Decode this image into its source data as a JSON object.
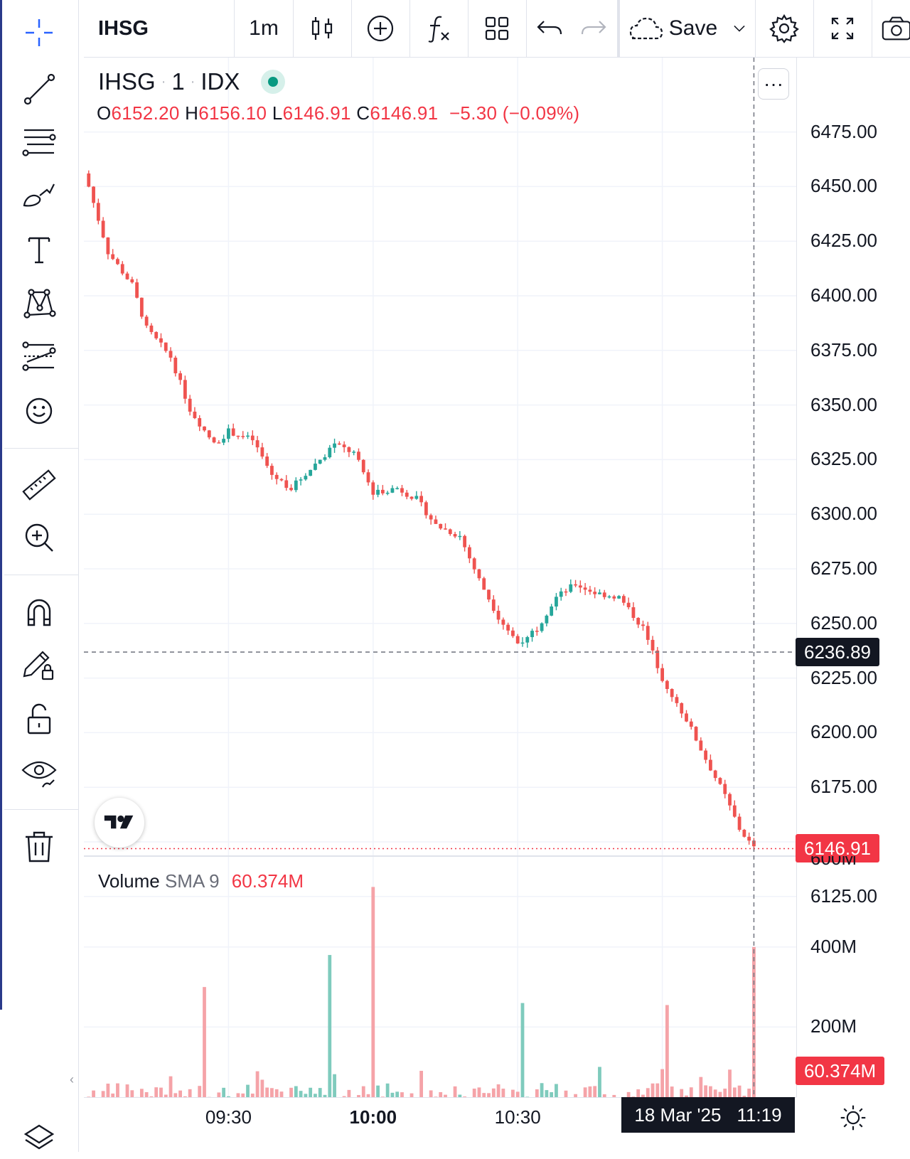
{
  "toolbar": {
    "symbol": "IHSG",
    "interval": "1m",
    "save_label": "Save"
  },
  "legend": {
    "symbol": "IHSG",
    "interval": "1",
    "exchange": "IDX",
    "open_key": "O",
    "open": "6152.20",
    "high_key": "H",
    "high": "6156.10",
    "low_key": "L",
    "low": "6146.91",
    "close_key": "C",
    "close": "6146.91",
    "change": "−5.30 (−0.09%)"
  },
  "volume_legend": {
    "name": "Volume",
    "indicator": "SMA 9",
    "value": "60.374M"
  },
  "price_axis": {
    "labels": [
      "6475.00",
      "6450.00",
      "6425.00",
      "6400.00",
      "6375.00",
      "6350.00",
      "6325.00",
      "6300.00",
      "6275.00",
      "6250.00",
      "6225.00",
      "6200.00",
      "6175.00",
      "6125.00"
    ],
    "crosshair_value": "6236.89",
    "last_price": "6146.91"
  },
  "volume_axis": {
    "labels": [
      "600M",
      "400M",
      "200M"
    ],
    "sma_value": "60.374M"
  },
  "time_axis": {
    "labels": [
      "09:30",
      "10:00",
      "10:30"
    ],
    "crosshair_date": "18 Mar '25",
    "crosshair_time": "11:19"
  },
  "colors": {
    "up": "#26a69a",
    "down": "#ef5350",
    "volume_up": "#7fcbbd",
    "volume_down": "#f5a3a8",
    "crosshair_badge": "#131722",
    "last_price_badge": "#f23645",
    "live_dot": "#089981"
  },
  "chart_data": {
    "type": "candlestick",
    "interval": "1m",
    "ylim": [
      6115,
      6480
    ],
    "x_ticks": [
      "09:30",
      "10:00",
      "10:30"
    ],
    "close_path": [
      {
        "t": "09:01",
        "close": 6450
      },
      {
        "t": "09:05",
        "close": 6420
      },
      {
        "t": "09:10",
        "close": 6405
      },
      {
        "t": "09:13",
        "close": 6385
      },
      {
        "t": "09:18",
        "close": 6372
      },
      {
        "t": "09:22",
        "close": 6348
      },
      {
        "t": "09:27",
        "close": 6332
      },
      {
        "t": "09:30",
        "close": 6338
      },
      {
        "t": "09:35",
        "close": 6334
      },
      {
        "t": "09:39",
        "close": 6318
      },
      {
        "t": "09:43",
        "close": 6312
      },
      {
        "t": "09:48",
        "close": 6323
      },
      {
        "t": "09:52",
        "close": 6332
      },
      {
        "t": "09:56",
        "close": 6328
      },
      {
        "t": "10:00",
        "close": 6310
      },
      {
        "t": "10:05",
        "close": 6312
      },
      {
        "t": "10:09",
        "close": 6307
      },
      {
        "t": "10:13",
        "close": 6295
      },
      {
        "t": "10:18",
        "close": 6290
      },
      {
        "t": "10:22",
        "close": 6270
      },
      {
        "t": "10:26",
        "close": 6253
      },
      {
        "t": "10:30",
        "close": 6241
      },
      {
        "t": "10:34",
        "close": 6248
      },
      {
        "t": "10:38",
        "close": 6262
      },
      {
        "t": "10:42",
        "close": 6268
      },
      {
        "t": "10:46",
        "close": 6264
      },
      {
        "t": "10:51",
        "close": 6262
      },
      {
        "t": "10:56",
        "close": 6248
      },
      {
        "t": "11:00",
        "close": 6225
      },
      {
        "t": "11:05",
        "close": 6206
      },
      {
        "t": "11:09",
        "close": 6188
      },
      {
        "t": "11:13",
        "close": 6171
      },
      {
        "t": "11:16",
        "close": 6156
      },
      {
        "t": "11:19",
        "close": 6146.91
      }
    ],
    "volume_spikes": [
      {
        "t": "09:25",
        "volume": 300000000
      },
      {
        "t": "09:51",
        "volume": 380000000
      },
      {
        "t": "10:00",
        "volume": 550000000
      },
      {
        "t": "10:31",
        "volume": 260000000
      },
      {
        "t": "11:01",
        "volume": 255000000
      },
      {
        "t": "11:19",
        "volume": 400000000
      }
    ],
    "volume_ylim": [
      0,
      620000000
    ]
  }
}
